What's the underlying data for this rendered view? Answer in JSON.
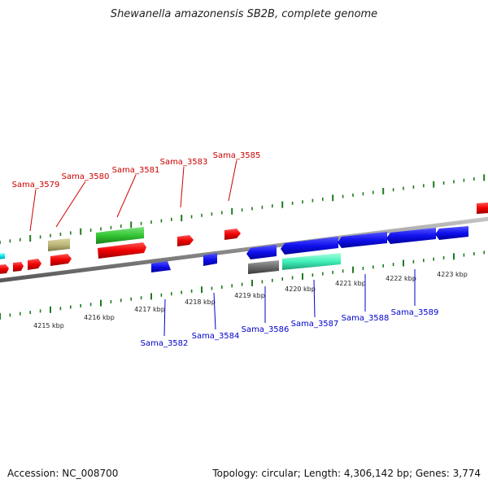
{
  "header": {
    "title": "Shewanella amazonensis SB2B, complete genome"
  },
  "footer": {
    "accession": "Accession: NC_008700",
    "topology": "Topology: circular; Length: 4,306,142 bp; Genes: 3,774"
  },
  "colors": {
    "backbone": "#8c8c8c",
    "tick": "#1f7a1f",
    "label_top": "#cc0000",
    "label_bottom": "#0000cc"
  },
  "scale": {
    "unit": "kbp",
    "labels": [
      "4215 kbp",
      "4216 kbp",
      "4217 kbp",
      "4218 kbp",
      "4219 kbp",
      "4220 kbp",
      "4221 kbp",
      "4222 kbp",
      "4223 kbp"
    ]
  },
  "genes_top": [
    {
      "label": "Sama_3579",
      "color": "#cc0000"
    },
    {
      "label": "Sama_3580",
      "color": "#cc0000"
    },
    {
      "label": "Sama_3581",
      "color": "#cc0000"
    },
    {
      "label": "Sama_3583",
      "color": "#cc0000"
    },
    {
      "label": "Sama_3585",
      "color": "#cc0000"
    }
  ],
  "genes_bottom": [
    {
      "label": "Sama_3582",
      "color": "#0000cc"
    },
    {
      "label": "Sama_3584",
      "color": "#0000cc"
    },
    {
      "label": "Sama_3586",
      "color": "#0000cc"
    },
    {
      "label": "Sama_3587",
      "color": "#0000cc"
    },
    {
      "label": "Sama_3588",
      "color": "#0000cc"
    },
    {
      "label": "Sama_3589",
      "color": "#0000cc"
    }
  ]
}
